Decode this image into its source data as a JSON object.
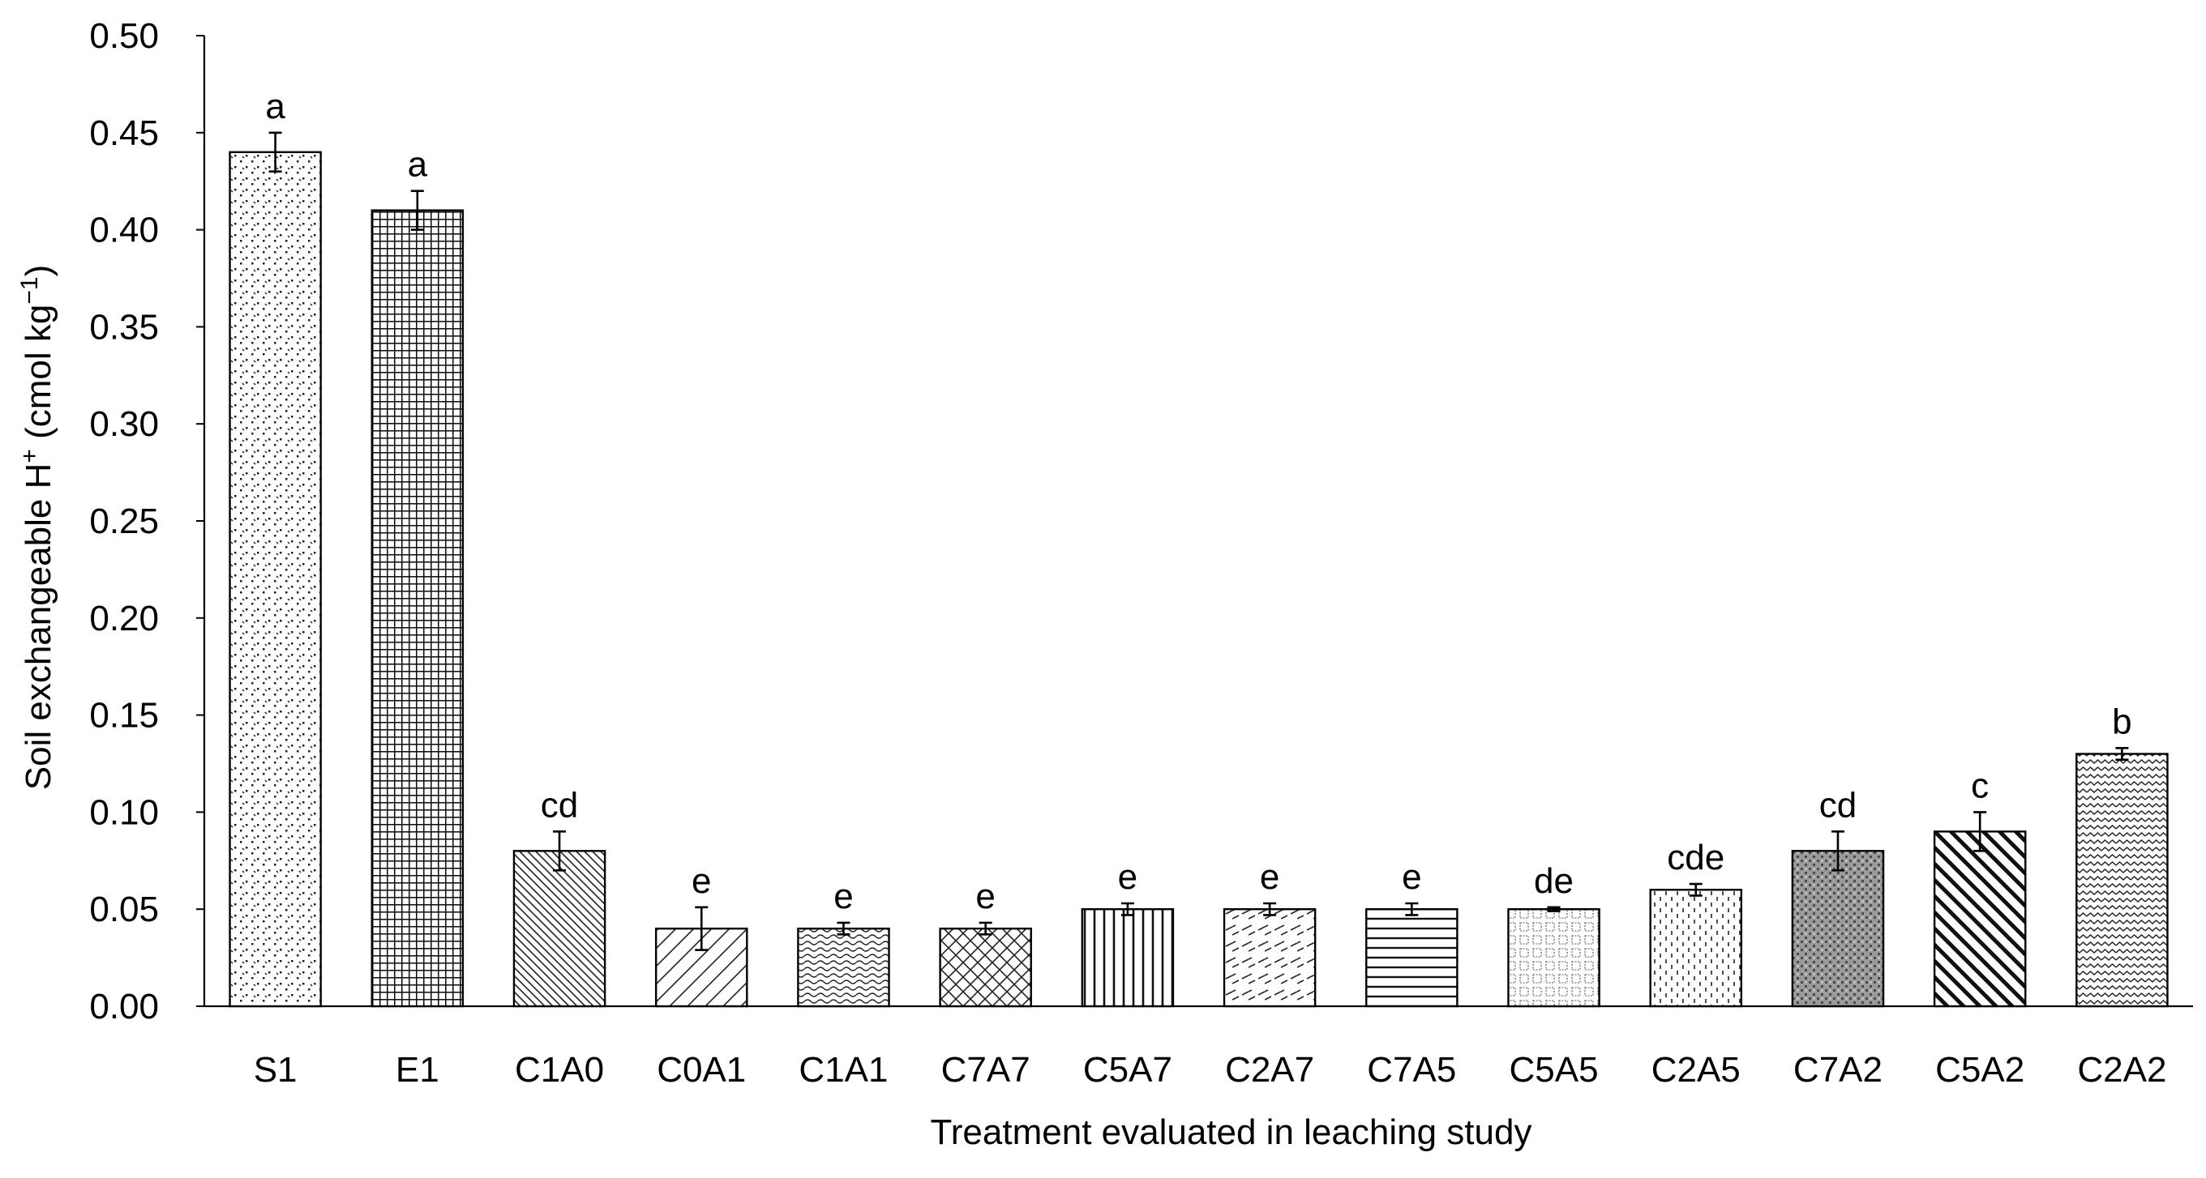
{
  "chart_data": {
    "type": "bar",
    "title": "",
    "xlabel": "Treatment evaluated in leaching study",
    "ylabel": "Soil exchangeable H",
    "ylabel_superscript": "+",
    "ylabel_units": " (cmol kg",
    "ylabel_units_superscript": "−1",
    "ylabel_close": ")",
    "ylim": [
      0,
      0.5
    ],
    "yticks": [
      "0.00",
      "0.05",
      "0.10",
      "0.15",
      "0.20",
      "0.25",
      "0.30",
      "0.35",
      "0.40",
      "0.45",
      "0.50"
    ],
    "categories": [
      "S1",
      "E1",
      "C1A0",
      "C0A1",
      "C1A1",
      "C7A7",
      "C5A7",
      "C2A7",
      "C7A5",
      "C5A5",
      "C2A5",
      "C7A2",
      "C5A2",
      "C2A2"
    ],
    "values": [
      0.44,
      0.41,
      0.08,
      0.04,
      0.04,
      0.04,
      0.05,
      0.05,
      0.05,
      0.05,
      0.06,
      0.08,
      0.09,
      0.13
    ],
    "errors": [
      0.01,
      0.01,
      0.01,
      0.011,
      0.003,
      0.003,
      0.003,
      0.003,
      0.003,
      0.001,
      0.003,
      0.01,
      0.01,
      0.003
    ],
    "significance_letters": [
      "a",
      "a",
      "cd",
      "e",
      "e",
      "e",
      "e",
      "e",
      "e",
      "de",
      "cde",
      "cd",
      "c",
      "b"
    ],
    "patterns": [
      "dots-sparse",
      "grid-dense",
      "diag-right-fine",
      "diag-left",
      "wavy",
      "crosshatch",
      "vertical",
      "dashed-diag",
      "horizontal",
      "small-grid",
      "dashed-vertical",
      "dense-dots",
      "diag-right-bold",
      "zigzag"
    ],
    "grid": false,
    "legend": "none"
  }
}
